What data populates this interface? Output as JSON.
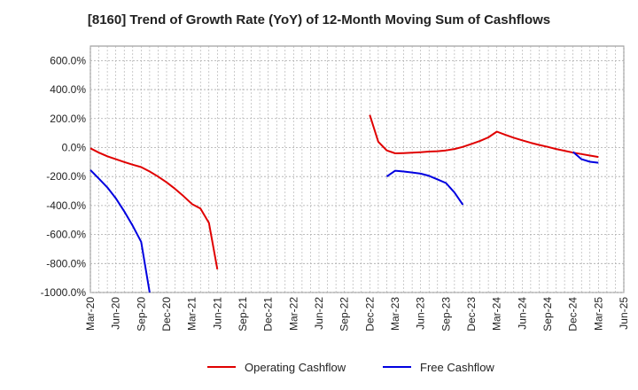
{
  "chart_data": {
    "type": "line",
    "title": "[8160]  Trend of Growth Rate (YoY) of 12-Month Moving Sum of Cashflows",
    "xlabel": "",
    "ylabel": "",
    "ylim": [
      -1000,
      700
    ],
    "y_ticks": [
      600,
      400,
      200,
      0,
      -200,
      -400,
      -600,
      -800,
      -1000
    ],
    "y_tick_labels": [
      "600.0%",
      "400.0%",
      "200.0%",
      "0.0%",
      "-200.0%",
      "-400.0%",
      "-600.0%",
      "-800.0%",
      "-1000.0%"
    ],
    "x_tick_labels": [
      "Mar-20",
      "Jun-20",
      "Sep-20",
      "Dec-20",
      "Mar-21",
      "Jun-21",
      "Sep-21",
      "Dec-21",
      "Mar-22",
      "Jun-22",
      "Sep-22",
      "Dec-22",
      "Mar-23",
      "Jun-23",
      "Sep-23",
      "Dec-23",
      "Mar-24",
      "Jun-24",
      "Sep-24",
      "Dec-24",
      "Mar-25",
      "Jun-25"
    ],
    "grid": true,
    "legend_position": "bottom",
    "series": [
      {
        "name": "Operating Cashflow",
        "color": "#e00000",
        "points": [
          [
            "Mar-20",
            -5
          ],
          [
            "Apr-20",
            -35
          ],
          [
            "May-20",
            -60
          ],
          [
            "Jun-20",
            -80
          ],
          [
            "Jul-20",
            -100
          ],
          [
            "Aug-20",
            -118
          ],
          [
            "Sep-20",
            -135
          ],
          [
            "Oct-20",
            -165
          ],
          [
            "Nov-20",
            -200
          ],
          [
            "Dec-20",
            -240
          ],
          [
            "Jan-21",
            -285
          ],
          [
            "Feb-21",
            -335
          ],
          [
            "Mar-21",
            -390
          ],
          [
            "Apr-21",
            -420
          ],
          [
            "May-21",
            -520
          ],
          [
            "Jun-21",
            -840
          ],
          null,
          [
            "Dec-22",
            225
          ],
          [
            "Jan-23",
            40
          ],
          [
            "Feb-23",
            -20
          ],
          [
            "Mar-23",
            -40
          ],
          [
            "Apr-23",
            -38
          ],
          [
            "May-23",
            -35
          ],
          [
            "Jun-23",
            -32
          ],
          [
            "Jul-23",
            -28
          ],
          [
            "Aug-23",
            -25
          ],
          [
            "Sep-23",
            -20
          ],
          [
            "Oct-23",
            -10
          ],
          [
            "Nov-23",
            5
          ],
          [
            "Dec-23",
            25
          ],
          [
            "Jan-24",
            45
          ],
          [
            "Feb-24",
            70
          ],
          [
            "Mar-24",
            110
          ],
          [
            "Apr-24",
            88
          ],
          [
            "May-24",
            68
          ],
          [
            "Jun-24",
            50
          ],
          [
            "Jul-24",
            33
          ],
          [
            "Aug-24",
            18
          ],
          [
            "Sep-24",
            5
          ],
          [
            "Oct-24",
            -10
          ],
          [
            "Nov-24",
            -22
          ],
          [
            "Dec-24",
            -35
          ],
          [
            "Jan-25",
            -45
          ],
          [
            "Feb-25",
            -55
          ],
          [
            "Mar-25",
            -65
          ]
        ]
      },
      {
        "name": "Free Cashflow",
        "color": "#0000e0",
        "points": [
          [
            "Mar-20",
            -155
          ],
          [
            "Apr-20",
            -215
          ],
          [
            "May-20",
            -275
          ],
          [
            "Jun-20",
            -350
          ],
          [
            "Jul-20",
            -440
          ],
          [
            "Aug-20",
            -540
          ],
          [
            "Sep-20",
            -650
          ],
          [
            "Oct-20",
            -1000
          ],
          null,
          [
            "Feb-23",
            -200
          ],
          [
            "Mar-23",
            -160
          ],
          [
            "Apr-23",
            -165
          ],
          [
            "May-23",
            -172
          ],
          [
            "Jun-23",
            -180
          ],
          [
            "Jul-23",
            -195
          ],
          [
            "Aug-23",
            -220
          ],
          [
            "Sep-23",
            -245
          ],
          [
            "Oct-23",
            -310
          ],
          [
            "Nov-23",
            -395
          ],
          null,
          [
            "Dec-24",
            -30
          ],
          [
            "Jan-25",
            -80
          ],
          [
            "Feb-25",
            -98
          ],
          [
            "Mar-25",
            -105
          ]
        ]
      }
    ]
  }
}
